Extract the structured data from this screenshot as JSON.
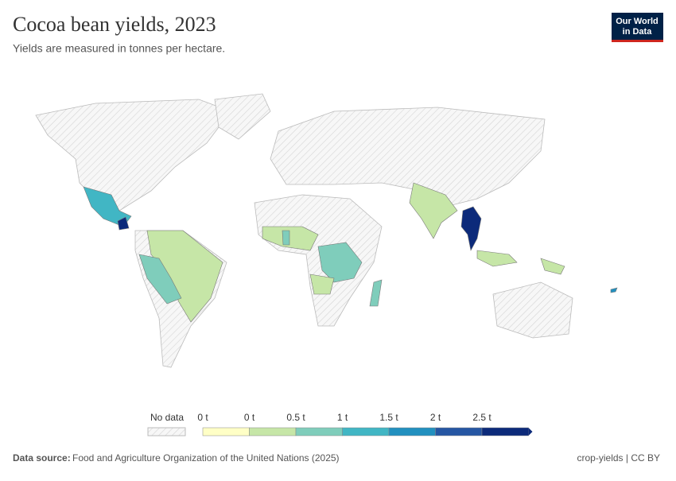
{
  "header": {
    "title": "Cocoa bean yields, 2023",
    "subtitle": "Yields are measured in tonnes per hectare.",
    "logo": [
      "Our World",
      "in Data"
    ]
  },
  "legend": {
    "no_data": "No data",
    "labels": [
      "0 t",
      "0 t",
      "0.5 t",
      "1 t",
      "1.5 t",
      "2 t",
      "2.5 t"
    ],
    "colors": [
      "#ffffc6",
      "#c6e6a7",
      "#7fcdbb",
      "#41b6c4",
      "#2290bf",
      "#2556a3",
      "#0c2a7a"
    ]
  },
  "footer": {
    "source_label": "Data source:",
    "source": "Food and Agriculture Organization of the United Nations (2025)",
    "credit": "crop-yields | CC BY"
  }
}
